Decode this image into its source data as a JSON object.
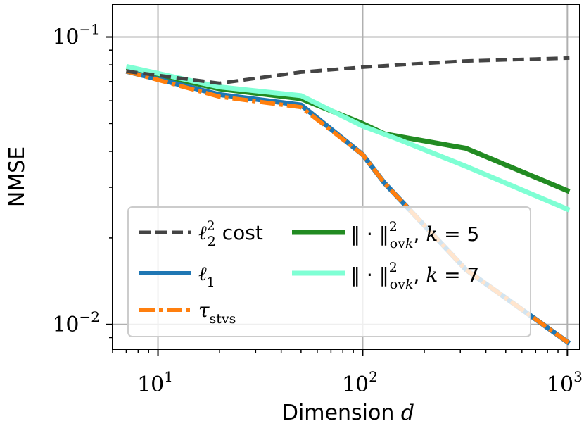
{
  "chart_data": {
    "type": "line",
    "title": "",
    "xlabel": "Dimension d",
    "xlabel_parts": {
      "text": "Dimension",
      "var": "d"
    },
    "ylabel": "NMSE",
    "xscale": "log",
    "yscale": "log",
    "xlim": [
      6,
      1150
    ],
    "ylim": [
      0.0082,
      0.13
    ],
    "grid": true,
    "legend_position": "lower-left",
    "x_ticks": [
      {
        "value": 10,
        "base": "10",
        "exp": "1"
      },
      {
        "value": 100,
        "base": "10",
        "exp": "2"
      },
      {
        "value": 1000,
        "base": "10",
        "exp": "3"
      }
    ],
    "y_ticks": [
      {
        "value": 0.01,
        "base": "10",
        "exp": "−2"
      },
      {
        "value": 0.1,
        "base": "10",
        "exp": "−1"
      }
    ],
    "series": [
      {
        "name": "ℓ₂² cost",
        "legend_label": {
          "sym": "ℓ",
          "sup": "2",
          "sub": "2",
          "rest": " cost"
        },
        "color": "#444444",
        "style": "dashed",
        "x": [
          7,
          20,
          50,
          100,
          150,
          320,
          1024
        ],
        "y": [
          0.076,
          0.069,
          0.0755,
          0.0785,
          0.08,
          0.0825,
          0.0845
        ]
      },
      {
        "name": "ℓ₁",
        "legend_label": {
          "sym": "ℓ",
          "sub": "1"
        },
        "color": "#1f77b4",
        "style": "solid",
        "x": [
          7,
          20,
          50,
          100,
          128,
          320,
          1024
        ],
        "y": [
          0.076,
          0.063,
          0.058,
          0.039,
          0.031,
          0.0155,
          0.0086
        ]
      },
      {
        "name": "τ_stvs",
        "legend_label": {
          "sym": "τ",
          "sub": "stvs"
        },
        "color": "#ff7f0e",
        "style": "dashdot",
        "x": [
          7,
          20,
          50,
          100,
          128,
          320,
          1024
        ],
        "y": [
          0.076,
          0.062,
          0.057,
          0.039,
          0.031,
          0.0155,
          0.0086
        ]
      },
      {
        "name": "‖·‖²_ovk, k = 5",
        "legend_label": {
          "pre": "‖ · ‖",
          "sup": "2",
          "sub": "ov",
          "subk": "k",
          "rest": ", ",
          "var": "k",
          "eq": " = 5"
        },
        "color": "#228b22",
        "style": "solid",
        "x": [
          7,
          20,
          50,
          100,
          128,
          320,
          1024
        ],
        "y": [
          0.078,
          0.066,
          0.061,
          0.05,
          0.046,
          0.041,
          0.029
        ]
      },
      {
        "name": "‖·‖²_ovk, k = 7",
        "legend_label": {
          "pre": "‖ · ‖",
          "sup": "2",
          "sub": "ov",
          "subk": "k",
          "rest": ", ",
          "var": "k",
          "eq": " = 7"
        },
        "color": "#7fffd4",
        "style": "solid",
        "x": [
          7,
          20,
          50,
          100,
          150,
          320,
          1024
        ],
        "y": [
          0.079,
          0.067,
          0.0625,
          0.049,
          0.044,
          0.0355,
          0.025
        ]
      }
    ]
  }
}
